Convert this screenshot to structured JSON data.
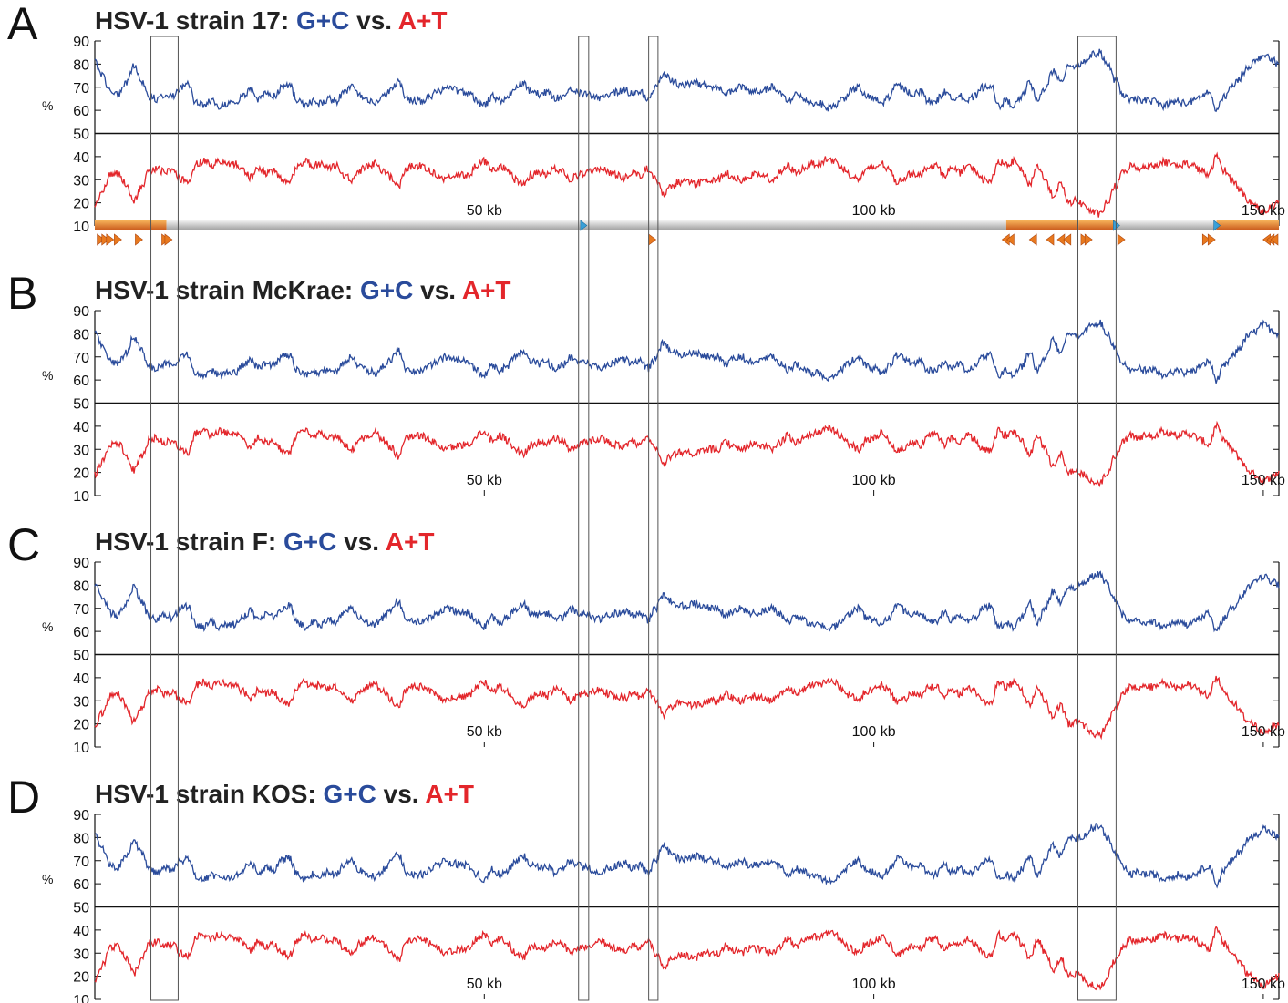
{
  "colors": {
    "gc": "#2a4b9b",
    "at": "#e3262b",
    "title": "#222222",
    "orange": "#e8791e",
    "gray": "#bdbdbd",
    "blue_marker": "#3aa0d8"
  },
  "chart_data": [
    {
      "panel": "A",
      "type": "line",
      "title_prefix": "HSV-1 strain 17:",
      "title_gc": "G+C",
      "title_vs": "vs.",
      "title_at": "A+T",
      "series": [
        {
          "name": "G+C",
          "color": "#2a4b9b"
        },
        {
          "name": "A+T",
          "color": "#e3262b"
        }
      ],
      "y_unit": "%",
      "yticks": [
        90,
        80,
        70,
        60,
        50,
        40,
        30,
        20,
        10
      ],
      "x_unit": "kb",
      "x_range": [
        0,
        152
      ],
      "xtick_labels": [
        "50 kb",
        "100 kb",
        "150 kb"
      ],
      "has_genome_map": true
    },
    {
      "panel": "B",
      "type": "line",
      "title_prefix": "HSV-1 strain McKrae:",
      "title_gc": "G+C",
      "title_vs": "vs.",
      "title_at": "A+T",
      "series": [
        {
          "name": "G+C",
          "color": "#2a4b9b"
        },
        {
          "name": "A+T",
          "color": "#e3262b"
        }
      ],
      "y_unit": "%",
      "yticks": [
        90,
        80,
        70,
        60,
        50,
        40,
        30,
        20,
        10
      ],
      "x_unit": "kb",
      "x_range": [
        0,
        152
      ],
      "xtick_labels": [
        "50 kb",
        "100 kb",
        "150 kb"
      ],
      "has_genome_map": false
    },
    {
      "panel": "C",
      "type": "line",
      "title_prefix": "HSV-1 strain F:",
      "title_gc": "G+C",
      "title_vs": "vs.",
      "title_at": "A+T",
      "series": [
        {
          "name": "G+C",
          "color": "#2a4b9b"
        },
        {
          "name": "A+T",
          "color": "#e3262b"
        }
      ],
      "y_unit": "%",
      "yticks": [
        90,
        80,
        70,
        60,
        50,
        40,
        30,
        20,
        10
      ],
      "x_unit": "kb",
      "x_range": [
        0,
        152
      ],
      "xtick_labels": [
        "50 kb",
        "100 kb",
        "150 kb"
      ],
      "has_genome_map": false
    },
    {
      "panel": "D",
      "type": "line",
      "title_prefix": "HSV-1 strain KOS:",
      "title_gc": "G+C",
      "title_vs": "vs.",
      "title_at": "A+T",
      "series": [
        {
          "name": "G+C",
          "color": "#2a4b9b"
        },
        {
          "name": "A+T",
          "color": "#e3262b"
        }
      ],
      "y_unit": "%",
      "yticks": [
        90,
        80,
        70,
        60,
        50,
        40,
        30,
        20,
        10
      ],
      "x_unit": "kb",
      "x_range": [
        0,
        152
      ],
      "xtick_labels": [
        "50 kb",
        "100 kb",
        "150 kb"
      ],
      "has_genome_map": false
    }
  ],
  "gc_profile": {
    "x_kb": [
      0,
      1,
      2,
      3,
      4,
      5,
      6,
      7,
      8,
      9,
      10,
      11,
      12,
      13,
      14,
      15,
      16,
      17,
      18,
      19,
      20,
      21,
      22,
      23,
      24,
      25,
      26,
      27,
      28,
      29,
      30,
      31,
      32,
      33,
      34,
      35,
      36,
      37,
      38,
      39,
      40,
      41,
      42,
      43,
      44,
      45,
      46,
      47,
      48,
      49,
      50,
      51,
      52,
      53,
      54,
      55,
      56,
      57,
      58,
      59,
      60,
      61,
      62,
      63,
      64,
      65,
      66,
      67,
      68,
      69,
      70,
      71,
      72,
      73,
      74,
      75,
      76,
      77,
      78,
      79,
      80,
      81,
      82,
      83,
      84,
      85,
      86,
      87,
      88,
      89,
      90,
      91,
      92,
      93,
      94,
      95,
      96,
      97,
      98,
      99,
      100,
      101,
      102,
      103,
      104,
      105,
      106,
      107,
      108,
      109,
      110,
      111,
      112,
      113,
      114,
      115,
      116,
      117,
      118,
      119,
      120,
      121,
      122,
      123,
      124,
      125,
      126,
      127,
      128,
      129,
      130,
      131,
      132,
      133,
      134,
      135,
      136,
      137,
      138,
      139,
      140,
      141,
      142,
      143,
      144,
      145,
      146,
      147,
      148,
      149,
      150,
      151,
      152
    ],
    "gc_percent": [
      81,
      75,
      68,
      67,
      72,
      79,
      73,
      66,
      65,
      67,
      66,
      70,
      71,
      63,
      62,
      64,
      62,
      63,
      63,
      66,
      69,
      65,
      67,
      66,
      70,
      71,
      64,
      62,
      64,
      63,
      65,
      64,
      68,
      70,
      66,
      64,
      63,
      66,
      69,
      73,
      65,
      64,
      64,
      66,
      68,
      70,
      69,
      68,
      68,
      64,
      62,
      66,
      64,
      66,
      70,
      72,
      68,
      67,
      68,
      65,
      66,
      70,
      68,
      67,
      66,
      65,
      67,
      68,
      69,
      67,
      68,
      65,
      70,
      76,
      73,
      71,
      71,
      72,
      71,
      70,
      70,
      67,
      69,
      70,
      68,
      68,
      69,
      70,
      67,
      64,
      67,
      65,
      63,
      63,
      61,
      62,
      65,
      68,
      70,
      66,
      65,
      63,
      66,
      71,
      69,
      67,
      68,
      64,
      64,
      68,
      65,
      67,
      64,
      66,
      70,
      71,
      62,
      64,
      62,
      66,
      72,
      64,
      70,
      77,
      72,
      80,
      79,
      81,
      84,
      85,
      80,
      73,
      67,
      64,
      65,
      64,
      64,
      62,
      63,
      64,
      63,
      64,
      66,
      68,
      60,
      66,
      70,
      74,
      79,
      81,
      84,
      82,
      80
    ]
  },
  "genome_map": {
    "segments": [
      {
        "type": "repeat",
        "start_kb": 0,
        "end_kb": 9.2
      },
      {
        "type": "unique",
        "start_kb": 9.2,
        "end_kb": 62.8
      },
      {
        "type": "unique",
        "start_kb": 62.8,
        "end_kb": 117.0
      },
      {
        "type": "repeat",
        "start_kb": 117.0,
        "end_kb": 126.3
      },
      {
        "type": "repeat",
        "start_kb": 126.3,
        "end_kb": 131.0
      },
      {
        "type": "unique",
        "start_kb": 131.0,
        "end_kb": 144.0
      },
      {
        "type": "repeat",
        "start_kb": 144.0,
        "end_kb": 152.0
      }
    ],
    "forward_features_kb": [
      0.3,
      0.9,
      1.5,
      2.5,
      5.2,
      8.6,
      9.0,
      71.1,
      126.6,
      127.1,
      131.3,
      142.2,
      142.9
    ],
    "reverse_features_kb": [
      117.4,
      118.0,
      120.9,
      123.1,
      124.5,
      125.3,
      150.9,
      151.4,
      152.0
    ],
    "blue_markers_kb": [
      62.7,
      131.1,
      144.0
    ]
  },
  "highlight_windows_kb": [
    [
      7.2,
      10.7
    ],
    [
      62.1,
      63.4
    ],
    [
      71.1,
      72.3
    ],
    [
      126.2,
      131.1
    ]
  ]
}
